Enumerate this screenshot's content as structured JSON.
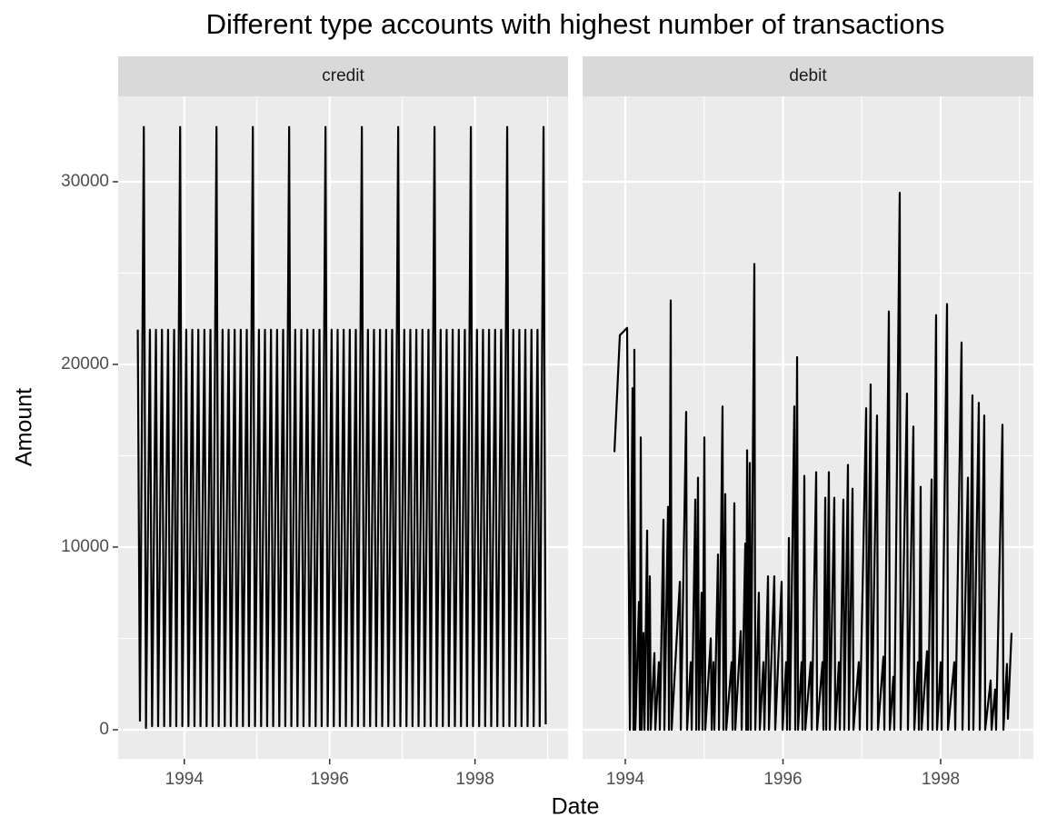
{
  "chart_data": {
    "type": "line",
    "title": "Different type accounts with highest number of transactions",
    "x_label": "Date",
    "y_label": "Amount",
    "ylim": [
      -1592,
      34676
    ],
    "yticks": [
      0,
      10000,
      20000,
      30000
    ],
    "grid": true,
    "panels": [
      {
        "title": "credit",
        "color": "#000000",
        "xlim": [
          1993.09,
          1999.28
        ],
        "xticks": [
          1994,
          1996,
          1998
        ],
        "x": [
          1993.36,
          1993.39,
          1993.443,
          1993.473,
          1993.527,
          1993.557,
          1993.61,
          1993.64,
          1993.693,
          1993.723,
          1993.777,
          1993.807,
          1993.86,
          1993.89,
          1993.943,
          1993.973,
          1994.027,
          1994.057,
          1994.11,
          1994.14,
          1994.193,
          1994.223,
          1994.277,
          1994.307,
          1994.36,
          1994.39,
          1994.443,
          1994.473,
          1994.527,
          1994.557,
          1994.61,
          1994.64,
          1994.693,
          1994.723,
          1994.777,
          1994.807,
          1994.86,
          1994.89,
          1994.943,
          1994.973,
          1995.027,
          1995.057,
          1995.11,
          1995.14,
          1995.193,
          1995.223,
          1995.277,
          1995.307,
          1995.36,
          1995.39,
          1995.443,
          1995.473,
          1995.527,
          1995.557,
          1995.61,
          1995.64,
          1995.693,
          1995.723,
          1995.777,
          1995.807,
          1995.86,
          1995.89,
          1995.943,
          1995.973,
          1996.027,
          1996.057,
          1996.11,
          1996.14,
          1996.193,
          1996.223,
          1996.277,
          1996.307,
          1996.36,
          1996.39,
          1996.443,
          1996.473,
          1996.527,
          1996.557,
          1996.61,
          1996.64,
          1996.693,
          1996.723,
          1996.777,
          1996.807,
          1996.86,
          1996.89,
          1996.943,
          1996.973,
          1997.027,
          1997.057,
          1997.11,
          1997.14,
          1997.193,
          1997.223,
          1997.277,
          1997.307,
          1997.36,
          1997.39,
          1997.443,
          1997.473,
          1997.527,
          1997.557,
          1997.61,
          1997.64,
          1997.693,
          1997.723,
          1997.777,
          1997.807,
          1997.86,
          1997.89,
          1997.943,
          1997.973,
          1998.027,
          1998.057,
          1998.11,
          1998.14,
          1998.193,
          1998.223,
          1998.277,
          1998.307,
          1998.36,
          1998.39,
          1998.443,
          1998.473,
          1998.527,
          1998.557,
          1998.61,
          1998.64,
          1998.693,
          1998.723,
          1998.777,
          1998.807,
          1998.86,
          1998.89,
          1998.943,
          1998.973
        ],
        "values": [
          21900,
          500,
          33000,
          100,
          21900,
          200,
          21900,
          200,
          21900,
          200,
          21900,
          200,
          21900,
          200,
          33000,
          200,
          21900,
          200,
          21900,
          200,
          21900,
          200,
          21900,
          200,
          21900,
          200,
          33000,
          200,
          21900,
          200,
          21900,
          200,
          21900,
          200,
          21900,
          200,
          21900,
          200,
          33000,
          200,
          21900,
          200,
          21900,
          200,
          21900,
          200,
          21900,
          200,
          21900,
          200,
          33000,
          200,
          21900,
          200,
          21900,
          200,
          21900,
          200,
          21900,
          200,
          21900,
          200,
          33000,
          200,
          21900,
          200,
          21900,
          200,
          21900,
          200,
          21900,
          200,
          21900,
          200,
          33000,
          200,
          21900,
          200,
          21900,
          200,
          21900,
          200,
          21900,
          200,
          21900,
          200,
          33000,
          200,
          21900,
          200,
          21900,
          200,
          21900,
          200,
          21900,
          200,
          21900,
          200,
          33000,
          200,
          21900,
          200,
          21900,
          200,
          21900,
          200,
          21900,
          200,
          21900,
          200,
          33000,
          200,
          21900,
          200,
          21900,
          200,
          21900,
          200,
          21900,
          200,
          21900,
          200,
          33000,
          200,
          21900,
          200,
          21900,
          200,
          21900,
          200,
          21900,
          200,
          21900,
          200,
          33000,
          300
        ]
      },
      {
        "title": "debit",
        "color": "#000000",
        "xlim": [
          1993.458,
          1999.176
        ],
        "xticks": [
          1994,
          1996,
          1998
        ],
        "x": [
          1993.862,
          1993.931,
          1994.023,
          1994.058,
          1994.092,
          1994.104,
          1994.115,
          1994.127,
          1994.173,
          1994.185,
          1994.196,
          1994.208,
          1994.231,
          1994.243,
          1994.277,
          1994.289,
          1994.311,
          1994.323,
          1994.369,
          1994.381,
          1994.426,
          1994.438,
          1994.484,
          1994.496,
          1994.542,
          1994.554,
          1994.576,
          1994.588,
          1994.692,
          1994.704,
          1994.772,
          1994.784,
          1994.83,
          1994.842,
          1994.888,
          1994.9,
          1994.922,
          1994.934,
          1994.968,
          1994.98,
          1995.003,
          1995.015,
          1995.084,
          1995.096,
          1995.118,
          1995.13,
          1995.176,
          1995.188,
          1995.233,
          1995.245,
          1995.268,
          1995.28,
          1995.349,
          1995.361,
          1995.383,
          1995.395,
          1995.464,
          1995.476,
          1995.522,
          1995.534,
          1995.545,
          1995.557,
          1995.579,
          1995.591,
          1995.637,
          1995.649,
          1995.694,
          1995.706,
          1995.752,
          1995.764,
          1995.81,
          1995.822,
          1995.89,
          1995.902,
          1995.983,
          1995.995,
          1996.04,
          1996.052,
          1996.075,
          1996.087,
          1996.144,
          1996.156,
          1996.179,
          1996.191,
          1996.236,
          1996.248,
          1996.271,
          1996.283,
          1996.352,
          1996.364,
          1996.421,
          1996.433,
          1996.501,
          1996.513,
          1996.536,
          1996.548,
          1996.582,
          1996.594,
          1996.651,
          1996.663,
          1996.709,
          1996.721,
          1996.766,
          1996.778,
          1996.824,
          1996.836,
          1996.882,
          1996.894,
          1996.962,
          1996.974,
          1997.055,
          1997.067,
          1997.112,
          1997.124,
          1997.193,
          1997.205,
          1997.274,
          1997.286,
          1997.343,
          1997.355,
          1997.4,
          1997.412,
          1997.481,
          1997.493,
          1997.573,
          1997.585,
          1997.654,
          1997.666,
          1997.712,
          1997.724,
          1997.746,
          1997.758,
          1997.827,
          1997.839,
          1997.885,
          1997.897,
          1997.942,
          1997.954,
          1998.0,
          1998.012,
          1998.081,
          1998.093,
          1998.173,
          1998.185,
          1998.265,
          1998.277,
          1998.346,
          1998.358,
          1998.403,
          1998.415,
          1998.484,
          1998.496,
          1998.553,
          1998.565,
          1998.634,
          1998.646,
          1998.691,
          1998.703,
          1998.784,
          1998.796,
          1998.841,
          1998.853,
          1998.899
        ],
        "values": [
          15200,
          21600,
          22000,
          0,
          18700,
          0,
          20800,
          0,
          7000,
          0,
          16000,
          0,
          5300,
          0,
          10900,
          0,
          8400,
          0,
          4200,
          0,
          3700,
          0,
          11500,
          0,
          12200,
          0,
          23500,
          0,
          8100,
          0,
          17400,
          0,
          3700,
          0,
          12600,
          0,
          13800,
          0,
          7500,
          0,
          16000,
          0,
          5000,
          0,
          3700,
          0,
          9600,
          0,
          17700,
          0,
          12900,
          0,
          3700,
          0,
          12400,
          0,
          5400,
          0,
          10200,
          0,
          15300,
          0,
          14600,
          0,
          25500,
          0,
          7500,
          0,
          3700,
          0,
          8400,
          0,
          8400,
          0,
          8100,
          0,
          3700,
          0,
          10500,
          0,
          17700,
          0,
          20400,
          0,
          3700,
          0,
          13900,
          0,
          3700,
          0,
          14100,
          0,
          3700,
          0,
          12700,
          0,
          14100,
          0,
          12700,
          0,
          3700,
          0,
          12600,
          0,
          14500,
          0,
          13200,
          0,
          3700,
          0,
          17600,
          0,
          18900,
          0,
          17200,
          0,
          4000,
          0,
          22900,
          0,
          2900,
          0,
          29400,
          0,
          18400,
          0,
          16600,
          0,
          3700,
          0,
          13300,
          0,
          4300,
          0,
          13700,
          0,
          22700,
          0,
          3700,
          0,
          23300,
          0,
          3700,
          0,
          21200,
          0,
          13800,
          0,
          18300,
          0,
          17900,
          0,
          17200,
          0,
          2700,
          0,
          2200,
          0,
          16700,
          0,
          3600,
          600,
          5300
        ]
      }
    ]
  }
}
